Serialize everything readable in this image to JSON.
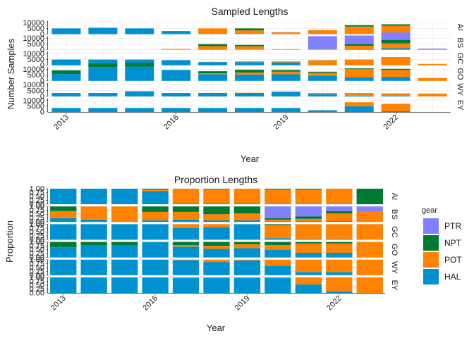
{
  "chart_data": [
    {
      "type": "bar",
      "stacked": true,
      "title": "Sampled Lengths",
      "xlabel": "Year",
      "ylabel": "Number Samples",
      "x": [
        2013,
        2014,
        2015,
        2016,
        2017,
        2018,
        2019,
        2020,
        2021,
        2022,
        2023
      ],
      "x_ticks": [
        "2013",
        "2016",
        "2019",
        "2022"
      ],
      "y_ticks": [
        "0",
        "5000",
        "10000"
      ],
      "y_tick_values": [
        0,
        5000,
        10000
      ],
      "ylim": [
        0,
        12000
      ],
      "panels": [
        {
          "label": "AI",
          "series": {
            "HAL": [
              5000,
              5600,
              5000,
              2700,
              200,
              200,
              100,
              100,
              100,
              100,
              0
            ],
            "POT": [
              0,
              0,
              0,
              0,
              4800,
              3100,
              1600,
              3500,
              6500,
              7300,
              0
            ],
            "NPT": [
              0,
              0,
              0,
              0,
              0,
              1700,
              0,
              0,
              1300,
              1200,
              0
            ],
            "PTR": [
              0,
              0,
              0,
              0,
              0,
              0,
              0,
              0,
              0,
              0,
              0
            ]
          }
        },
        {
          "label": "BS",
          "series": {
            "HAL": [
              0,
              0,
              0,
              200,
              300,
              200,
              200,
              200,
              400,
              1300,
              0
            ],
            "POT": [
              0,
              0,
              0,
              500,
              2800,
              2800,
              300,
              300,
              3000,
              4200,
              0
            ],
            "NPT": [
              0,
              0,
              0,
              0,
              1800,
              1200,
              0,
              300,
              1500,
              3100,
              0
            ],
            "PTR": [
              0,
              0,
              0,
              0,
              0,
              0,
              0,
              11000,
              7500,
              6500,
              1000
            ]
          }
        },
        {
          "label": "GC",
          "series": {
            "HAL": [
              5000,
              5000,
              5000,
              4500,
              2800,
              2800,
              2500,
              200,
              200,
              200,
              0
            ],
            "POT": [
              0,
              0,
              0,
              0,
              200,
              600,
              900,
              4000,
              4800,
              7000,
              1200
            ],
            "NPT": [
              0,
              0,
              0,
              0,
              0,
              0,
              0,
              200,
              0,
              0,
              0
            ],
            "PTR": [
              0,
              0,
              0,
              0,
              0,
              0,
              0,
              0,
              0,
              0,
              0
            ]
          }
        },
        {
          "label": "GO",
          "series": {
            "HAL": [
              6000,
              12000,
              12500,
              9500,
              5800,
              5500,
              5700,
              4600,
              3200,
              3500,
              0
            ],
            "POT": [
              0,
              0,
              0,
              0,
              800,
              1800,
              2300,
              2400,
              7000,
              6000,
              2500
            ],
            "NPT": [
              3200,
              3200,
              3200,
              0,
              1800,
              2400,
              1500,
              1000,
              700,
              1000,
              0
            ],
            "PTR": [
              0,
              0,
              0,
              0,
              0,
              0,
              0,
              0,
              0,
              0,
              0
            ]
          }
        },
        {
          "label": "WY",
          "series": {
            "HAL": [
              3000,
              3000,
              4500,
              3000,
              3000,
              3000,
              4000,
              2000,
              600,
              500,
              0
            ],
            "POT": [
              0,
              0,
              0,
              0,
              100,
              200,
              200,
              1000,
              2400,
              2200,
              2500
            ],
            "NPT": [
              0,
              0,
              0,
              0,
              0,
              0,
              0,
              0,
              0,
              0,
              0
            ],
            "PTR": [
              0,
              0,
              0,
              0,
              0,
              0,
              0,
              0,
              0,
              0,
              0
            ]
          }
        },
        {
          "label": "EY",
          "series": {
            "HAL": [
              3500,
              3500,
              3500,
              3500,
              3500,
              3500,
              3500,
              1500,
              5000,
              600,
              0
            ],
            "POT": [
              0,
              0,
              0,
              0,
              0,
              0,
              0,
              0,
              3500,
              6500,
              0
            ],
            "NPT": [
              0,
              0,
              0,
              0,
              0,
              0,
              0,
              0,
              0,
              0,
              0
            ],
            "PTR": [
              0,
              0,
              0,
              0,
              0,
              0,
              0,
              0,
              0,
              0,
              0
            ]
          }
        }
      ]
    },
    {
      "type": "bar",
      "stacked": true,
      "title": "Proportion Lengths",
      "xlabel": "Year",
      "ylabel": "Proportion",
      "x": [
        2013,
        2014,
        2015,
        2016,
        2017,
        2018,
        2019,
        2020,
        2021,
        2022,
        2023
      ],
      "x_ticks": [
        "2013",
        "2016",
        "2019",
        "2022"
      ],
      "y_ticks": [
        "0.00",
        "0.25",
        "0.50",
        "0.75",
        "1.00"
      ],
      "y_tick_values": [
        0,
        0.25,
        0.5,
        0.75,
        1
      ],
      "ylim": [
        0,
        1
      ],
      "panels": [
        {
          "label": "AI",
          "series": {
            "HAL": [
              1.0,
              1.0,
              1.0,
              0.85,
              0.05,
              0.05,
              0.05,
              0.03,
              0.02,
              0.02,
              0.0
            ],
            "POT": [
              0.0,
              0.0,
              0.0,
              0.1,
              0.95,
              0.92,
              0.95,
              0.92,
              0.93,
              0.98,
              0.0
            ],
            "NPT": [
              0.0,
              0.0,
              0.0,
              0.05,
              0.0,
              0.03,
              0.0,
              0.05,
              0.05,
              0.0,
              1.0
            ],
            "PTR": [
              0,
              0,
              0,
              0,
              0,
              0,
              0,
              0,
              0,
              0,
              0
            ]
          }
        },
        {
          "label": "BS",
          "series": {
            "HAL": [
              0.25,
              0.15,
              0.0,
              0.1,
              0.15,
              0.1,
              0.1,
              0.03,
              0.05,
              0.05,
              0.0
            ],
            "POT": [
              0.45,
              0.85,
              1.0,
              0.55,
              0.5,
              0.4,
              0.45,
              0.12,
              0.15,
              0.5,
              0.65
            ],
            "NPT": [
              0.3,
              0.0,
              0.0,
              0.35,
              0.35,
              0.5,
              0.45,
              0.1,
              0.15,
              0.15,
              0.0
            ],
            "PTR": [
              0.0,
              0.0,
              0.0,
              0.0,
              0.0,
              0.0,
              0.0,
              0.75,
              0.65,
              0.3,
              0.35
            ]
          }
        },
        {
          "label": "GC",
          "series": {
            "HAL": [
              1.0,
              1.0,
              1.0,
              1.0,
              0.75,
              0.8,
              1.0,
              0.1,
              0.05,
              0.05,
              0.0
            ],
            "POT": [
              0.0,
              0.0,
              0.0,
              0.0,
              0.25,
              0.2,
              0.0,
              0.85,
              0.95,
              0.95,
              1.0
            ],
            "NPT": [
              0.0,
              0.0,
              0.0,
              0.0,
              0.0,
              0.0,
              0.0,
              0.05,
              0.0,
              0.0,
              0.0
            ],
            "PTR": [
              0,
              0,
              0,
              0,
              0,
              0,
              0,
              0,
              0,
              0,
              0
            ]
          }
        },
        {
          "label": "GO",
          "series": {
            "HAL": [
              0.65,
              0.8,
              0.8,
              1.0,
              0.7,
              0.55,
              0.6,
              0.5,
              0.3,
              0.3,
              0.0
            ],
            "POT": [
              0.0,
              0.0,
              0.0,
              0.0,
              0.1,
              0.2,
              0.25,
              0.3,
              0.6,
              0.6,
              1.0
            ],
            "NPT": [
              0.35,
              0.2,
              0.2,
              0.0,
              0.2,
              0.25,
              0.15,
              0.2,
              0.1,
              0.1,
              0.0
            ],
            "PTR": [
              0,
              0,
              0,
              0,
              0,
              0,
              0,
              0,
              0,
              0,
              0
            ]
          }
        },
        {
          "label": "WY",
          "series": {
            "HAL": [
              1.0,
              1.0,
              1.0,
              1.0,
              0.97,
              0.85,
              0.95,
              0.6,
              0.2,
              0.2,
              0.0
            ],
            "POT": [
              0.0,
              0.0,
              0.0,
              0.0,
              0.03,
              0.15,
              0.05,
              0.4,
              0.8,
              0.8,
              1.0
            ],
            "NPT": [
              0,
              0,
              0,
              0,
              0,
              0,
              0,
              0,
              0,
              0,
              0
            ],
            "PTR": [
              0,
              0,
              0,
              0,
              0,
              0,
              0,
              0,
              0,
              0,
              0
            ]
          }
        },
        {
          "label": "EY",
          "series": {
            "HAL": [
              1.0,
              1.0,
              1.0,
              1.0,
              0.98,
              0.98,
              0.98,
              0.98,
              0.55,
              0.1,
              0.0
            ],
            "POT": [
              0.0,
              0.0,
              0.0,
              0.0,
              0.02,
              0.02,
              0.02,
              0.02,
              0.45,
              0.9,
              1.0
            ],
            "NPT": [
              0,
              0,
              0,
              0,
              0,
              0,
              0,
              0,
              0,
              0,
              0
            ],
            "PTR": [
              0,
              0,
              0,
              0,
              0,
              0,
              0,
              0,
              0,
              0,
              0
            ]
          }
        }
      ]
    }
  ],
  "legend": {
    "title": "gear",
    "placement": "right",
    "items": [
      {
        "name": "PTR",
        "color": "#8080ff"
      },
      {
        "name": "NPT",
        "color": "#007a33"
      },
      {
        "name": "POT",
        "color": "#ff8200"
      },
      {
        "name": "HAL",
        "color": "#0092d0"
      }
    ]
  },
  "stack_order": [
    "HAL",
    "POT",
    "NPT",
    "PTR"
  ]
}
